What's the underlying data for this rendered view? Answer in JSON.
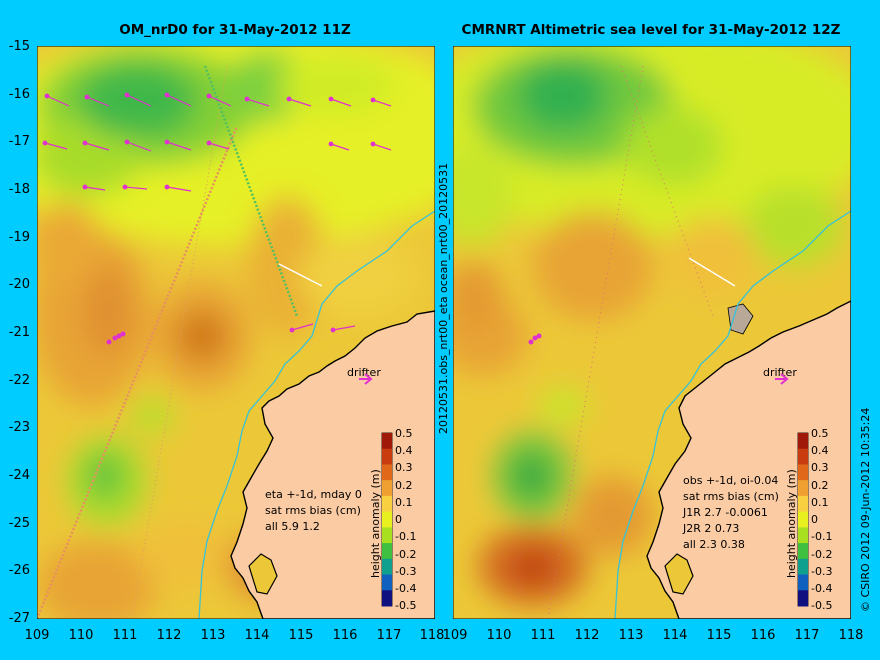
{
  "titles": {
    "left": "OM_nrD0 for 31-May-2012 11Z",
    "right": "CMRNRT Altimetric sea level  for 31-May-2012 12Z"
  },
  "axes": {
    "lat_ticks": [
      "-15",
      "-16",
      "-17",
      "-18",
      "-19",
      "-20",
      "-21",
      "-22",
      "-23",
      "-24",
      "-25",
      "-26",
      "-27"
    ],
    "lon_ticks_left": [
      "109",
      "110",
      "111",
      "112",
      "113",
      "114",
      "115",
      "116",
      "117",
      "118"
    ],
    "lon_ticks_right": [
      "109",
      "110",
      "111",
      "112",
      "113",
      "114",
      "115",
      "116",
      "117",
      "118"
    ]
  },
  "side_labels": {
    "middle": "20120531.obs_nrt00_eta    ocean_nrt00_20120531",
    "right": "© CSIRO 2012  09-Jun-2012 10:35:24"
  },
  "drifter_label": "drifter",
  "colorbar": {
    "label": "height anomaly (m)",
    "ticks": [
      "0.5",
      "0.4",
      "0.3",
      "0.2",
      "0.1",
      "0",
      "-0.1",
      "-0.2",
      "-0.3",
      "-0.4",
      "-0.5"
    ],
    "colors": [
      "#a01808",
      "#c83c10",
      "#e06818",
      "#f0a030",
      "#f8d040",
      "#e8f020",
      "#a8e020",
      "#40c040",
      "#10a090",
      "#1060c0",
      "#101080"
    ]
  },
  "annotations": {
    "left": [
      "eta +-1d, mday 0",
      "sat rms bias (cm)",
      "all 5.9 1.2"
    ],
    "right": [
      "obs +-1d, oi-0.04",
      "sat rms bias (cm)",
      "J1R   2.7 -0.0061",
      "J2R   2  0.73",
      "all 2.3 0.38"
    ]
  },
  "colors": {
    "background": "#00ccff",
    "land": "#fbcca4",
    "coast": "#000000",
    "bathy": "#36c2d8",
    "vector": "#e030d0"
  }
}
